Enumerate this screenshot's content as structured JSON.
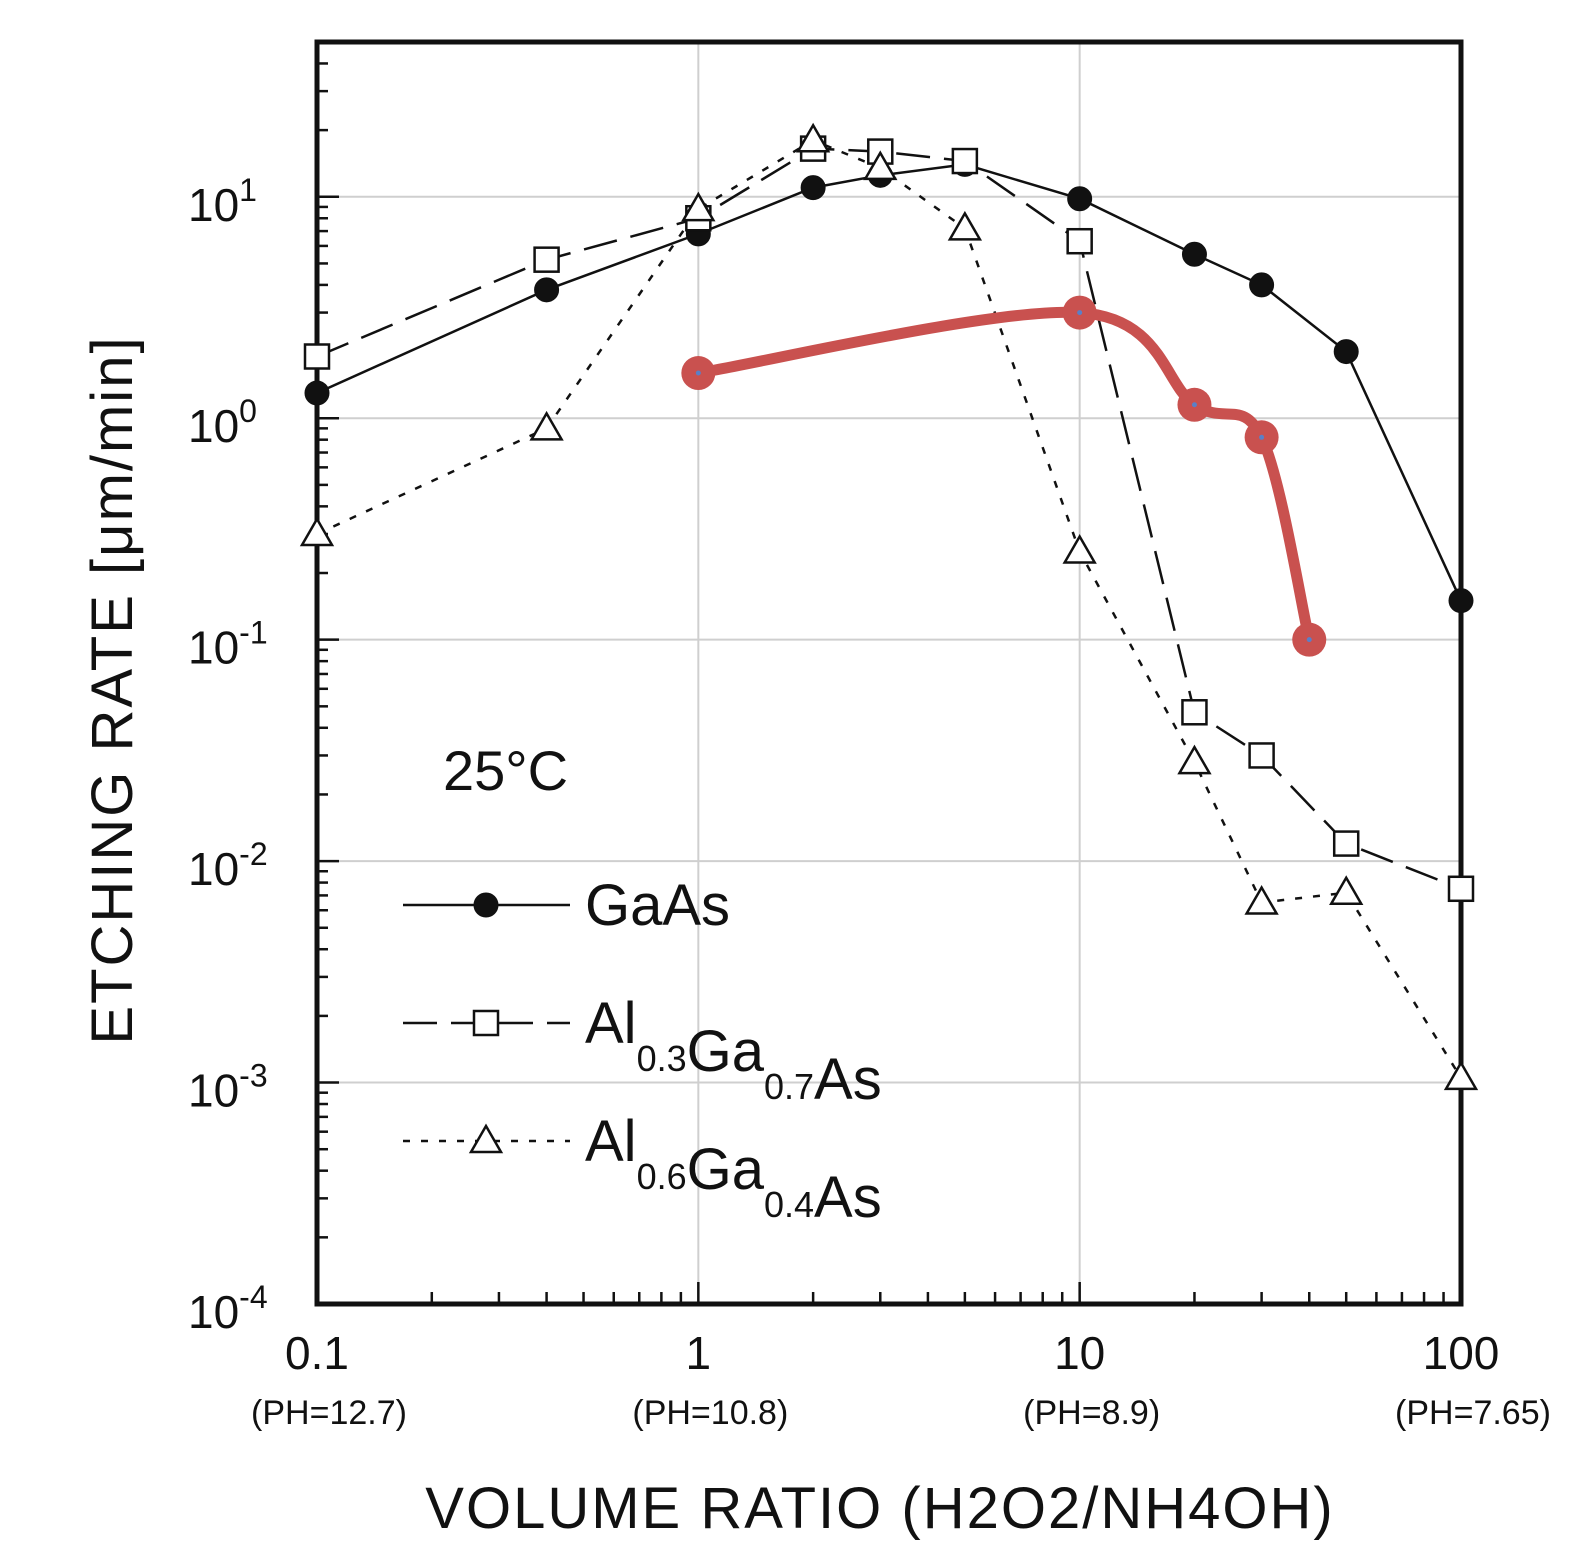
{
  "chart_data": {
    "type": "line",
    "x_scale": "log",
    "y_scale": "log",
    "xlim": [
      0.1,
      100
    ],
    "ylim": [
      0.0001,
      50
    ],
    "grid": true,
    "xlabel": "VOLUME RATIO (H2O2/NH4OH)",
    "ylabel": "ETCHING RATE [μm/min]",
    "annotation": "25°C",
    "x_ticks": [
      {
        "value": 0.1,
        "label": "0.1",
        "ph": "(PH=12.7)"
      },
      {
        "value": 1,
        "label": "1",
        "ph": "(PH=10.8)"
      },
      {
        "value": 10,
        "label": "10",
        "ph": "(PH=8.9)"
      },
      {
        "value": 100,
        "label": "100",
        "ph": "(PH=7.65)"
      }
    ],
    "y_ticks": [
      {
        "value": 10,
        "base": "10",
        "exp": "1"
      },
      {
        "value": 1,
        "base": "10",
        "exp": "0"
      },
      {
        "value": 0.1,
        "base": "10",
        "exp": "-1"
      },
      {
        "value": 0.01,
        "base": "10",
        "exp": "-2"
      },
      {
        "value": 0.001,
        "base": "10",
        "exp": "-3"
      },
      {
        "value": 0.0001,
        "base": "10",
        "exp": "-4"
      }
    ],
    "series": [
      {
        "name": "GaAs",
        "legend_parts": [
          [
            "GaAs",
            ""
          ]
        ],
        "marker": "filled-circle",
        "dash": "solid",
        "color": "#111111",
        "points": [
          [
            0.1,
            1.3
          ],
          [
            0.4,
            3.8
          ],
          [
            1,
            6.8
          ],
          [
            2,
            11
          ],
          [
            3,
            12.5
          ],
          [
            5,
            14
          ],
          [
            10,
            9.8
          ],
          [
            20,
            5.5
          ],
          [
            30,
            4.0
          ],
          [
            50,
            2.0
          ],
          [
            100,
            0.15
          ]
        ]
      },
      {
        "name": "Al0.3Ga0.7As",
        "legend_parts": [
          [
            "Al",
            "0.3"
          ],
          [
            "Ga",
            "0.7"
          ],
          [
            "As",
            ""
          ]
        ],
        "marker": "open-square",
        "dash": "long-dash",
        "color": "#111111",
        "points": [
          [
            0.1,
            1.9
          ],
          [
            0.4,
            5.2
          ],
          [
            1,
            8
          ],
          [
            2,
            16.5
          ],
          [
            3,
            16
          ],
          [
            5,
            14.5
          ],
          [
            10,
            6.3
          ],
          [
            20,
            0.047
          ],
          [
            30,
            0.03
          ],
          [
            50,
            0.012
          ],
          [
            100,
            0.0075
          ]
        ]
      },
      {
        "name": "Al0.6Ga0.4As",
        "legend_parts": [
          [
            "Al",
            "0.6"
          ],
          [
            "Ga",
            "0.4"
          ],
          [
            "As",
            ""
          ]
        ],
        "marker": "open-triangle",
        "dash": "dotted",
        "color": "#111111",
        "points": [
          [
            0.1,
            0.3
          ],
          [
            0.4,
            0.9
          ],
          [
            1,
            8.8
          ],
          [
            2,
            18
          ],
          [
            3,
            13.5
          ],
          [
            5,
            7.2
          ],
          [
            10,
            0.25
          ],
          [
            20,
            0.028
          ],
          [
            30,
            0.0065
          ],
          [
            50,
            0.0072
          ],
          [
            100,
            0.00105
          ]
        ]
      },
      {
        "marker": "filled-circle",
        "dash": "solid",
        "color": "#c9514f",
        "points": [
          [
            1,
            1.6
          ],
          [
            10,
            3.0
          ],
          [
            20,
            1.15
          ],
          [
            30,
            0.82
          ],
          [
            40,
            0.1
          ]
        ]
      }
    ]
  }
}
